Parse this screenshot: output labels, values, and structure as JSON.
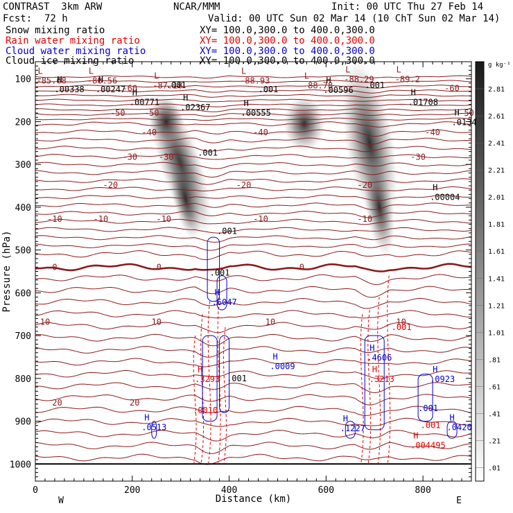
{
  "header": {
    "model": "CONTRAST  3km ARW",
    "org": "NCAR/MMM",
    "init": "Init: 00 UTC Thu 27 Feb 14",
    "fcst_label": "Fcst:",
    "fcst_value": "72 h",
    "valid": "Valid: 00 UTC Sun 02 Mar 14 (10 ChT Sun 02 Mar 14)"
  },
  "fields": [
    {
      "name": "Snow mixing ratio",
      "xy": "XY= 100.0,300.0 to 400.0,300.0",
      "color": "#000000"
    },
    {
      "name": "Rain water mixing ratio",
      "xy": "XY= 100.0,300.0 to 400.0,300.0",
      "color": "#e00000"
    },
    {
      "name": "Cloud water mixing ratio",
      "xy": "XY= 100.0,300.0 to 400.0,300.0",
      "color": "#0000d0"
    },
    {
      "name": "Cloud ice mixing ratio",
      "xy": "XY= 100.0,300.0 to 400.0,300.0",
      "color": "#000000"
    }
  ],
  "colorbar": {
    "unit": "g kg⁻¹",
    "labels": [
      "2.81",
      "2.61",
      "2.41",
      "2.21",
      "2.01",
      "1.81",
      "1.61",
      "1.41",
      "1.21",
      "1.01",
      ".81",
      ".61",
      ".41",
      ".21",
      ".01"
    ]
  },
  "chart_data": {
    "type": "contour cross-section",
    "xlabel": "Distance (km)",
    "ylabel": "Pressure (hPa)",
    "xlim": [
      0,
      900
    ],
    "ylim": [
      1040,
      60
    ],
    "x_ticks": [
      0,
      200,
      400,
      600,
      800
    ],
    "y_ticks": [
      100,
      200,
      300,
      400,
      500,
      600,
      700,
      800,
      900,
      1000
    ],
    "x_end_labels": {
      "left": "W",
      "right": "E"
    },
    "temperature_contours": [
      {
        "value": "-50",
        "p": 180,
        "labels": [
          170,
          240,
          890
        ]
      },
      {
        "value": "-40",
        "p": 225,
        "labels": [
          235,
          465,
          820
        ]
      },
      {
        "value": "-30",
        "p": 283,
        "labels": [
          195,
          270,
          790
        ]
      },
      {
        "value": "-20",
        "p": 348,
        "labels": [
          155,
          430,
          680
        ]
      },
      {
        "value": "-10",
        "p": 428,
        "labels": [
          40,
          135,
          265,
          465,
          680
        ]
      },
      {
        "value": "0",
        "p": 540,
        "labels": [
          40,
          255,
          550
        ]
      },
      {
        "value": "10",
        "p": 668,
        "labels": [
          20,
          250,
          485,
          755
        ]
      },
      {
        "value": "20",
        "p": 857,
        "labels": [
          45,
          205
        ]
      },
      {
        "value": "-60",
        "p": 122,
        "labels": [
          195,
          860
        ]
      }
    ],
    "low_labels": [
      {
        "letter": "L",
        "value": "-85.68",
        "x": 5,
        "p": 88
      },
      {
        "letter": "L",
        "value": "-86.56",
        "x": 110,
        "p": 88
      },
      {
        "letter": "L",
        "value": "-87.18",
        "x": 245,
        "p": 100
      },
      {
        "letter": "L",
        "value": "-88.93",
        "x": 425,
        "p": 88
      },
      {
        "letter": "L",
        "value": "-88.78",
        "x": 555,
        "p": 100
      },
      {
        "letter": "L",
        "value": "-88.29",
        "x": 640,
        "p": 85
      },
      {
        "letter": "L",
        "value": "-89.2",
        "x": 745,
        "p": 85
      }
    ],
    "high_labels": [
      {
        "letter": "H",
        "value": ".00338",
        "x": 45,
        "p": 128,
        "series": "snow"
      },
      {
        "letter": "H",
        "value": ".00247",
        "x": 130,
        "p": 128,
        "series": "snow"
      },
      {
        "letter": "H",
        "value": ".00771",
        "x": 200,
        "p": 158,
        "series": "snow"
      },
      {
        "letter": "H",
        "value": ".02367",
        "x": 305,
        "p": 170,
        "series": "snow"
      },
      {
        "letter": "H",
        "value": ".00555",
        "x": 430,
        "p": 183,
        "series": "snow"
      },
      {
        "letter": "H",
        "value": ".00596",
        "x": 600,
        "p": 130,
        "series": "snow"
      },
      {
        "letter": "H",
        "value": ".01708",
        "x": 775,
        "p": 158,
        "series": "snow"
      },
      {
        "letter": "H",
        "value": ".0134",
        "x": 865,
        "p": 205,
        "series": "snow"
      },
      {
        "letter": "H",
        "value": ".00004",
        "x": 820,
        "p": 380,
        "series": "snow"
      },
      {
        "letter": "H",
        "value": ".6047",
        "x": 370,
        "p": 625,
        "series": "cloud"
      },
      {
        "letter": "H",
        "value": ".0009",
        "x": 490,
        "p": 775,
        "series": "cloud"
      },
      {
        "letter": "H",
        "value": ".4606",
        "x": 690,
        "p": 755,
        "series": "cloud"
      },
      {
        "letter": "H",
        "value": ".0923",
        "x": 820,
        "p": 805,
        "series": "cloud"
      },
      {
        "letter": "H",
        "value": ".0513",
        "x": 225,
        "p": 918,
        "series": "cloud"
      },
      {
        "letter": "H",
        "value": ".1227",
        "x": 635,
        "p": 920,
        "series": "cloud"
      },
      {
        "letter": "H",
        "value": ".0420",
        "x": 855,
        "p": 918,
        "series": "cloud"
      },
      {
        "letter": "H",
        "value": ".3293",
        "x": 335,
        "p": 805,
        "series": "rain"
      },
      {
        "letter": "H",
        "value": ".3213",
        "x": 695,
        "p": 805,
        "series": "rain"
      },
      {
        "letter": "H",
        "value": ".004495",
        "x": 780,
        "p": 960,
        "series": "rain"
      }
    ],
    "minor_values": [
      {
        "value": ".001",
        "x": 270,
        "p": 115,
        "color": "#000000"
      },
      {
        "value": ".001",
        "x": 460,
        "p": 125,
        "color": "#000000"
      },
      {
        "value": ".001",
        "x": 680,
        "p": 115,
        "color": "#000000"
      },
      {
        "value": ".001",
        "x": 335,
        "p": 273,
        "color": "#000000"
      },
      {
        "value": ".001",
        "x": 375,
        "p": 456,
        "color": "#000000"
      },
      {
        "value": ".001",
        "x": 360,
        "p": 553,
        "color": "#000000"
      },
      {
        "value": ".001",
        "x": 395,
        "p": 800,
        "color": "#000000"
      },
      {
        "value": ".001",
        "x": 735,
        "p": 680,
        "color": "#e00000"
      },
      {
        "value": ".001",
        "x": 795,
        "p": 910,
        "color": "#e00000"
      },
      {
        "value": ".001",
        "x": 790,
        "p": 870,
        "color": "#0000d0"
      },
      {
        "value": ".0010",
        "x": 325,
        "p": 875,
        "color": "#e00000"
      }
    ]
  }
}
